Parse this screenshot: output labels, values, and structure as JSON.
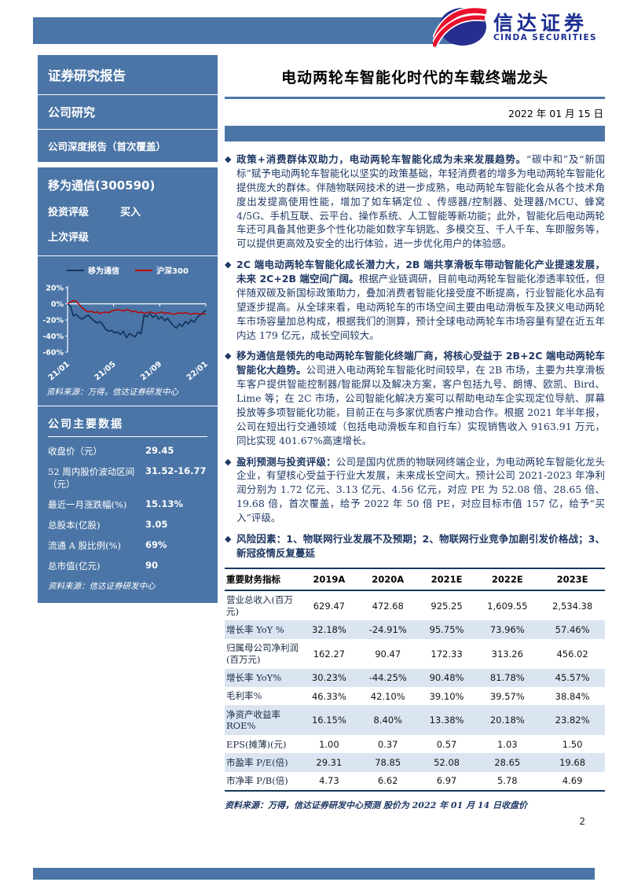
{
  "brand": {
    "name_cn": "信达证券",
    "name_en": "CINDA SECURITIES"
  },
  "bullet_marker": "◆",
  "colors": {
    "steel_blue": "#4B75A6",
    "navy_text": "#1F3864",
    "table_stripe": "#DBE5F1",
    "table_border": "#17375E",
    "logo_blue": "#1C2F92",
    "logo_red": "#E8112D",
    "chart_line_company": "#17365D",
    "chart_line_index": "#C00000"
  },
  "sidebar": {
    "report_type": "证券研究报告",
    "category": "公司研究",
    "subtype": "公司深度报告（首次覆盖）",
    "stock": "移为通信(300590)",
    "rating_label": "投资评级",
    "rating_value": "买入",
    "prev_rating_label": "上次评级",
    "prev_rating_value": "",
    "chart_source": "资料来源：万得，信达证券研发中心",
    "data_title": "公司主要数据",
    "data_rows": [
      {
        "label": "收盘价（元）",
        "value": "29.45"
      },
      {
        "label": "52 周内股价波动区间（元）",
        "value": "31.52-16.77"
      },
      {
        "label": "最近一月涨跌幅(%)",
        "value": "15.13%"
      },
      {
        "label": "总股本(亿股)",
        "value": "3.05"
      },
      {
        "label": "流通 A 股比例(%)",
        "value": "69%"
      },
      {
        "label": "总市值(亿元)",
        "value": "90"
      }
    ],
    "data_source": "资料来源：信达证券研发中心"
  },
  "chart_data": {
    "type": "line",
    "title": "",
    "legend_position": "top",
    "grid": false,
    "ylim": [
      -60,
      20
    ],
    "y_ticks": [
      20,
      0,
      -20,
      -40,
      -60
    ],
    "y_tick_suffix": "%",
    "x_ticks": [
      "21/01",
      "21/05",
      "21/09",
      "22/01"
    ],
    "series": [
      {
        "name": "移为通信",
        "color": "#17365d",
        "values": [
          0,
          -3,
          -15,
          -13,
          -17,
          -19,
          -16,
          -14,
          -18,
          -21,
          -24,
          -22,
          -26,
          -32,
          -34,
          -33,
          -36,
          -35,
          -38,
          -34,
          -42,
          -37,
          -39,
          -41,
          -35,
          -37,
          -14,
          -16,
          -12,
          -17,
          -14,
          -19,
          -16,
          -21,
          -18,
          -23,
          -27,
          -30,
          -25,
          -28,
          -22,
          -25,
          -20,
          -23,
          -17,
          -14,
          -11,
          -8
        ]
      },
      {
        "name": "沪深300",
        "color": "#c00000",
        "values": [
          0,
          2,
          4,
          3,
          -1,
          -5,
          -8,
          -10,
          -9,
          -11,
          -10,
          -12,
          -11,
          -10,
          -11,
          -9,
          -8,
          -7,
          -8,
          -9,
          -7,
          -8,
          -10,
          -9,
          -11,
          -10,
          -12,
          -11,
          -10,
          -11,
          -12,
          -11,
          -10,
          -12,
          -11,
          -12,
          -13,
          -12,
          -11,
          -12,
          -11,
          -12,
          -13,
          -12,
          -12,
          -13,
          -12,
          -13
        ]
      }
    ]
  },
  "header": {
    "title": "电动两轮车智能化时代的车载终端龙头",
    "date": "2022 年 01 月 15 日"
  },
  "bullets": [
    {
      "lead": "政策+消费群体双助力，电动两轮车智能化成为未来发展趋势。",
      "text": "“碳中和”及“新国标”赋予电动两轮车智能化以坚实的政策基础，年轻消费者的增多为电动两轮车智能化提供庞大的群体。伴随物联网技术的进一步成熟，电动两轮车智能化会从各个技术角度出发提高使用性能，增加了如车辆定位 、传感器/控制器、处理器/MCU、蜂窝 4/5G、手机互联、云平台、操作系统、人工智能等新功能；此外，智能化后电动两轮车还可具备其他更多个性化功能如数字车钥匙、多模交互、千人千车、车即服务等，可以提供更高效及安全的出行体验，进一步优化用户的体验感。"
    },
    {
      "lead": "2C 端电动两轮车智能化成长潜力大，2B 端共享滑板车带动智能化产业提速发展，未来 2C+2B 端空间广阔。",
      "text": "根据产业链调研，目前电动两轮车智能化渗透率较低，但伴随双碳及新国标政策助力，叠加消费者智能化接受度不断提高，行业智能化水品有望逐步提高。从全球来看，电动两轮车的市场空间主要由电动滑板车及狭义电动两轮车市场容量加总构成，根据我们的测算，预计全球电动两轮车市场容量有望在近五年内达 179 亿元，成长空间较大。"
    },
    {
      "lead": "移为通信是领先的电动两轮车智能化终端厂商，将核心受益于 2B+2C 端电动两轮车智能化大趋势。",
      "text": "公司进入电动两轮车智能化时间较早，在 2B 市场，主要为共享滑板车客户提供智能控制器/智能屏以及解决方案，客户包括九号、朗博、欧凯、Bird、Lime 等；在 2C 市场，公司智能化解决方案可以帮助电动车企实现定位导航、屏幕投放等多项智能化功能，目前正在与多家优质客户推动合作。根据 2021 年半年报，公司在短出行交通领域（包括电动滑板车和自行车）实现销售收入 9163.91 万元，同比实现 401.67%高速增长。"
    },
    {
      "lead": "盈利预测与投资评级：",
      "text": "公司是国内优质的物联网终端企业，为电动两轮车智能化龙头企业，有望核心受益于行业大发展，未来成长空间大。预计公司 2021-2023 年净利润分别为 1.72 亿元、3.13 亿元、4.56 亿元，对应 PE 为 52.08 倍、28.65 倍、19.68 倍，首次覆盖，给予 2022 年 50 倍 PE，对应目标市值 157 亿，给予“买入”评级。"
    },
    {
      "lead": "风险因素：1、物联网行业发展不及预期；2、物联网行业竞争加剧引发价格战；3、新冠疫情反复蔓延",
      "text": ""
    }
  ],
  "table": {
    "headers": [
      "重要财务指标",
      "2019A",
      "2020A",
      "2021E",
      "2022E",
      "2023E"
    ],
    "rows": [
      {
        "label": "营业总收入(百万元)",
        "values": [
          "629.47",
          "472.68",
          "925.25",
          "1,609.55",
          "2,534.38"
        ]
      },
      {
        "label": "增长率 YoY %",
        "values": [
          "32.18%",
          "-24.91%",
          "95.75%",
          "73.96%",
          "57.46%"
        ]
      },
      {
        "label": "归属母公司净利润(百万元)",
        "values": [
          "162.27",
          "90.47",
          "172.33",
          "313.26",
          "456.02"
        ]
      },
      {
        "label": "增长率 YoY%",
        "values": [
          "30.23%",
          "-44.25%",
          "90.48%",
          "81.78%",
          "45.57%"
        ]
      },
      {
        "label": "毛利率%",
        "values": [
          "46.33%",
          "42.10%",
          "39.10%",
          "39.57%",
          "38.84%"
        ]
      },
      {
        "label": "净资产收益率ROE%",
        "values": [
          "16.15%",
          "8.40%",
          "13.38%",
          "20.18%",
          "23.82%"
        ]
      },
      {
        "label": "EPS(摊薄)(元)",
        "values": [
          "1.00",
          "0.37",
          "0.57",
          "1.03",
          "1.50"
        ]
      },
      {
        "label": "市盈率 P/E(倍)",
        "values": [
          "29.31",
          "78.85",
          "52.08",
          "28.65",
          "19.68"
        ]
      },
      {
        "label": "市净率 P/B(倍)",
        "values": [
          "4.73",
          "6.62",
          "6.97",
          "5.78",
          "4.69"
        ]
      }
    ],
    "source": "资料来源：万得，信达证券研发中心预测 股价为 2022 年 01 月 14 日收盘价"
  },
  "page_number": "2"
}
